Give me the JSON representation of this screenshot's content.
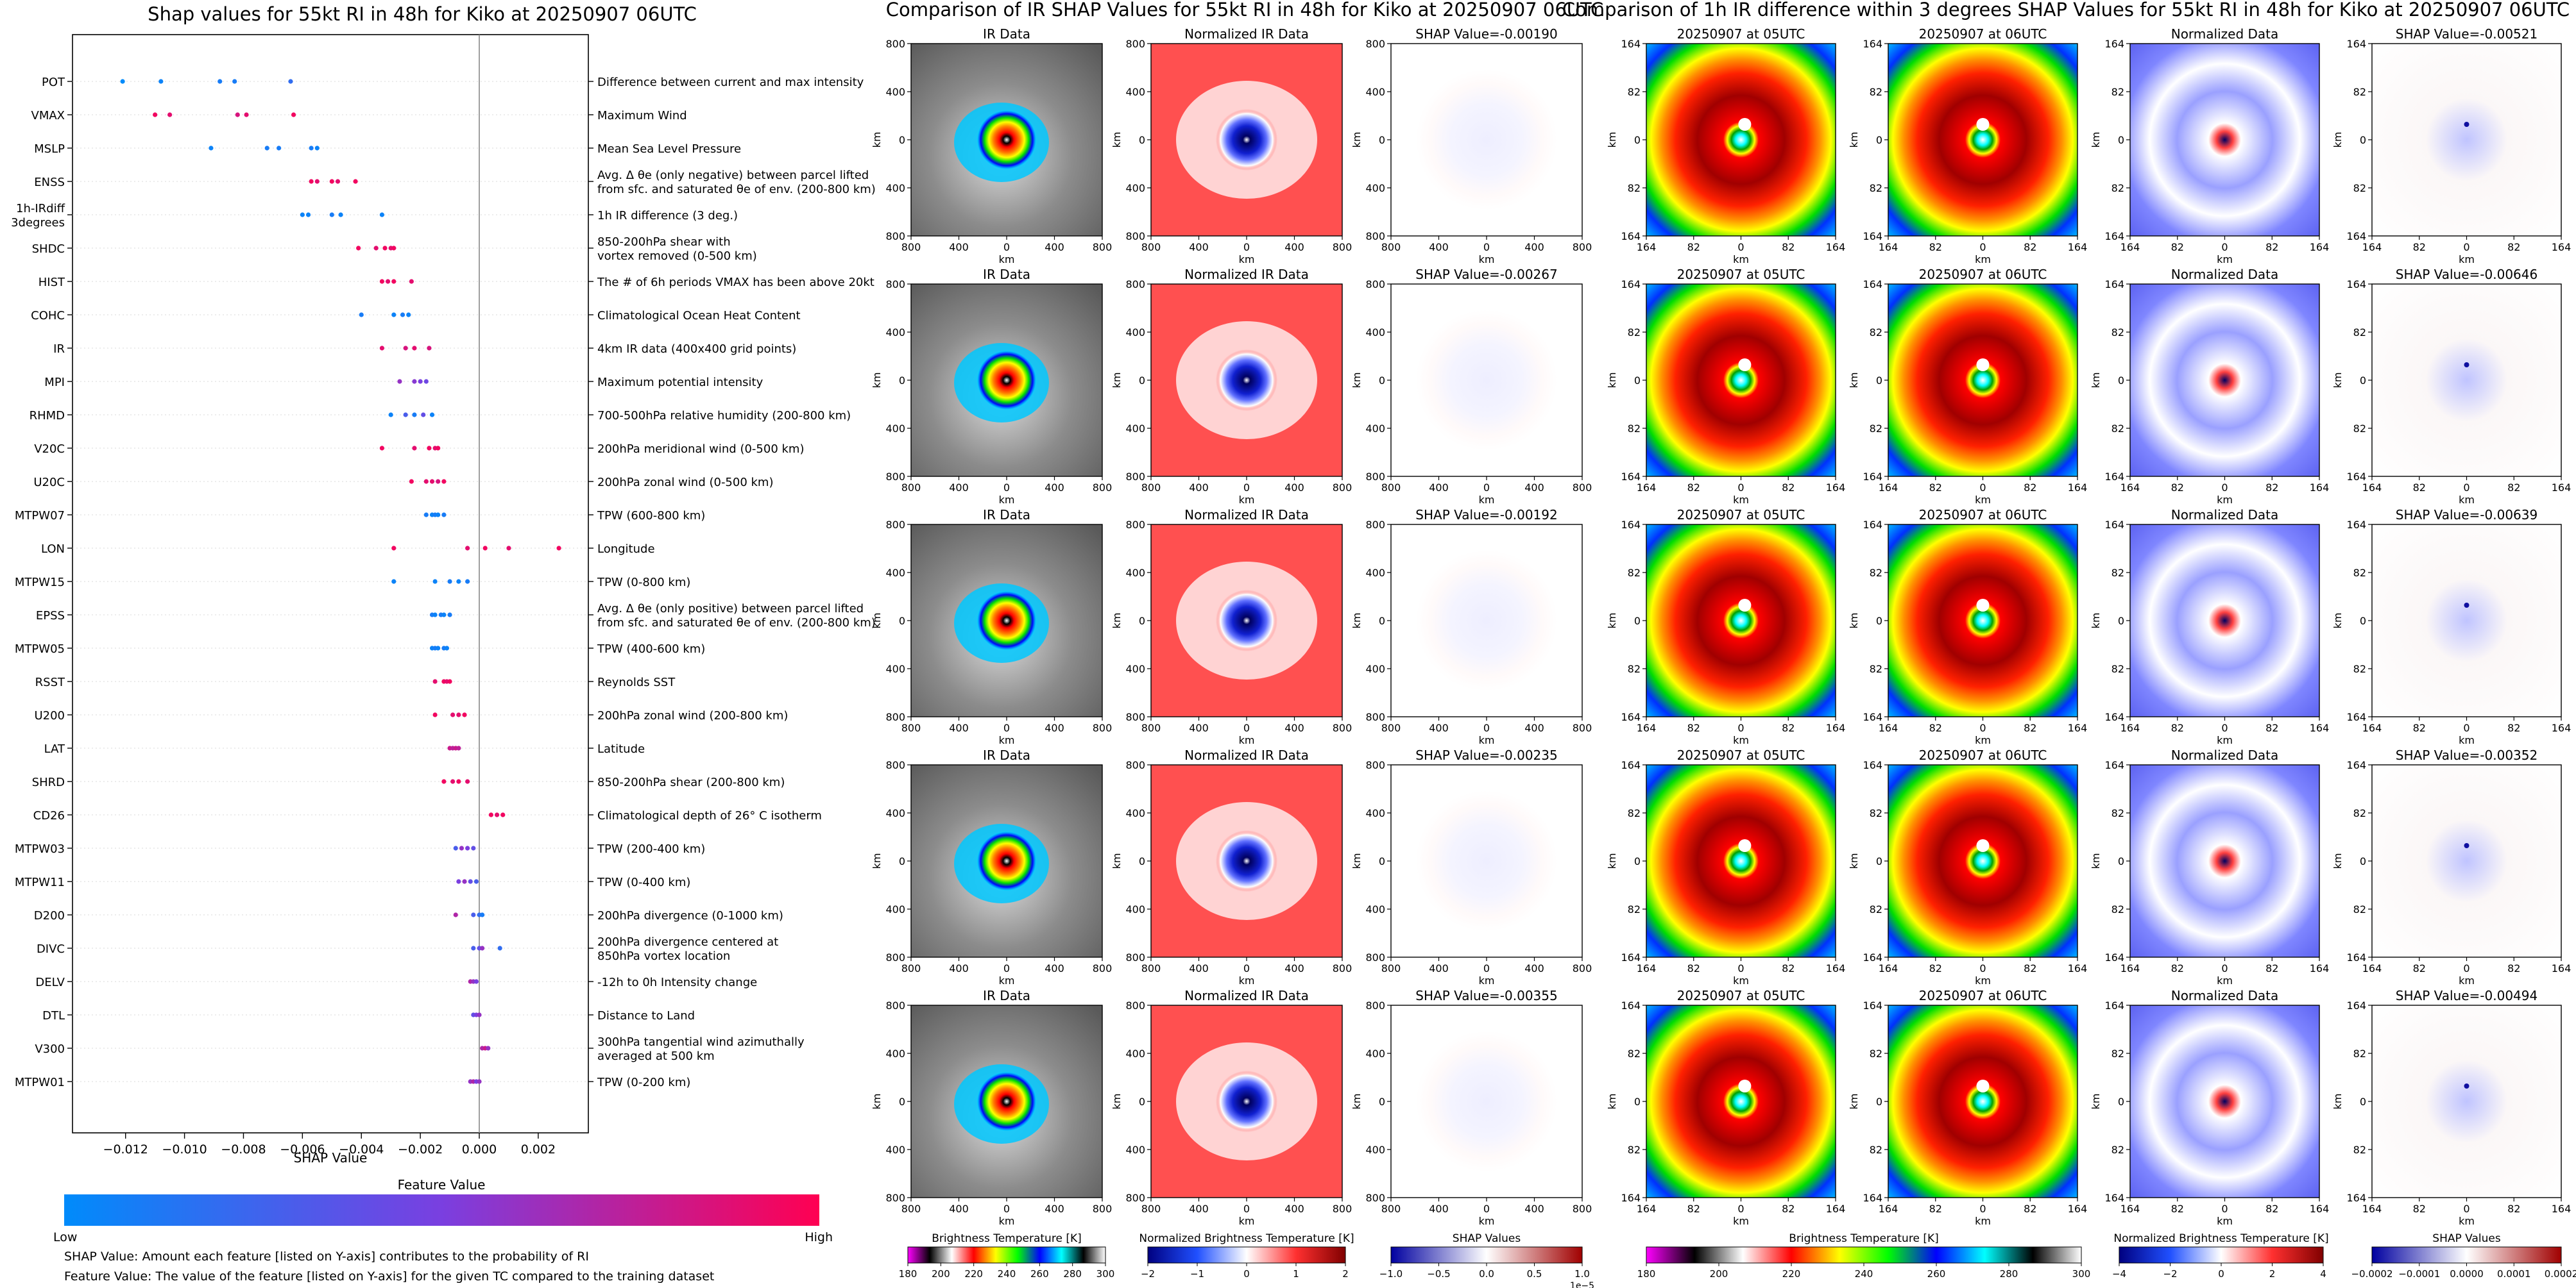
{
  "left_panel": {
    "title": "Shap values for 55kt RI in 48h for Kiko at 20250907 06UTC",
    "xlabel": "SHAP Value",
    "colorbar_title": "Feature Value",
    "colorbar_low": "Low",
    "colorbar_high": "High",
    "footnotes": [
      "SHAP Value: Amount each feature [listed on Y-axis] contributes to the probability of RI",
      "Feature Value: The value of the feature [listed on Y-axis] for the given TC compared to the training dataset"
    ]
  },
  "middle_panel": {
    "title": "Comparison of IR SHAP Values for 55kt RI in 48h for Kiko at 20250907 06UTC",
    "col_titles": [
      "IR Data",
      "Normalized IR Data"
    ],
    "shap_titles": [
      "SHAP Value=-0.00190",
      "SHAP Value=-0.00267",
      "SHAP Value=-0.00192",
      "SHAP Value=-0.00235",
      "SHAP Value=-0.00355"
    ],
    "axis_label": "km",
    "x_ticks": [
      "800",
      "400",
      "0",
      "400",
      "800"
    ],
    "y_ticks": [
      "800",
      "400",
      "0",
      "400",
      "800"
    ],
    "colorbars": [
      {
        "label": "Brightness Temperature [K]",
        "ticks": [
          "180",
          "200",
          "220",
          "240",
          "260",
          "280",
          "300"
        ],
        "gradient": [
          "#ff00ff",
          "#000000",
          "#ffffff",
          "#ff0000",
          "#ffff00",
          "#00ff00",
          "#0000ff",
          "#00ffff",
          "#000000",
          "#ffffff"
        ]
      },
      {
        "label": "Normalized Brightness Temperature [K]",
        "ticks": [
          "−2",
          "−1",
          "0",
          "1",
          "2"
        ],
        "gradient": [
          "#000080",
          "#2050ff",
          "#ffffff",
          "#ff3030",
          "#800000"
        ]
      },
      {
        "label": "SHAP Values",
        "ticks": [
          "−1.0",
          "−0.5",
          "0.0",
          "0.5",
          "1.0"
        ],
        "offset": "1e−5",
        "gradient": [
          "#0000a0",
          "#ffffff",
          "#a00000"
        ]
      }
    ]
  },
  "right_panel": {
    "title": "Comparison of 1h IR difference within 3 degrees SHAP Values for 55kt RI in 48h for Kiko at 20250907 06UTC",
    "col_titles": [
      "20250907 at 05UTC",
      "20250907 at 06UTC",
      "Normalized Data"
    ],
    "shap_titles": [
      "SHAP Value=-0.00521",
      "SHAP Value=-0.00646",
      "SHAP Value=-0.00639",
      "SHAP Value=-0.00352",
      "SHAP Value=-0.00494"
    ],
    "axis_label": "km",
    "x_ticks": [
      "164",
      "82",
      "0",
      "82",
      "164"
    ],
    "y_ticks": [
      "164",
      "82",
      "0",
      "82",
      "164"
    ],
    "colorbars": [
      {
        "label": "Brightness Temperature [K]",
        "ticks": [
          "180",
          "200",
          "220",
          "240",
          "260",
          "280",
          "300"
        ],
        "gradient": [
          "#ff00ff",
          "#000000",
          "#ffffff",
          "#ff0000",
          "#ffff00",
          "#00ff00",
          "#0000ff",
          "#00ffff",
          "#000000",
          "#ffffff"
        ]
      },
      {
        "label": "Normalized Brightness Temperature [K]",
        "ticks": [
          "−4",
          "−2",
          "0",
          "2",
          "4"
        ],
        "gradient": [
          "#000080",
          "#2050ff",
          "#ffffff",
          "#ff3030",
          "#800000"
        ]
      },
      {
        "label": "SHAP Values",
        "ticks": [
          "−0.0002",
          "−0.0001",
          "0.0000",
          "0.0001",
          "0.0002"
        ],
        "gradient": [
          "#0000a0",
          "#ffffff",
          "#a00000"
        ]
      }
    ]
  },
  "chart_data": [
    {
      "type": "scatter",
      "title": "Shap values for 55kt RI in 48h for Kiko at 20250907 06UTC",
      "xlabel": "SHAP Value",
      "xlim": [
        -0.0138,
        0.0037
      ],
      "x_ticks": [
        -0.012,
        -0.01,
        -0.008,
        -0.006,
        -0.004,
        -0.002,
        0.0,
        0.002
      ],
      "x_tick_labels": [
        "−0.012",
        "−0.010",
        "−0.008",
        "−0.006",
        "−0.004",
        "−0.002",
        "0.000",
        "0.002"
      ],
      "colorbar": {
        "label": "Feature Value",
        "low": "Low",
        "high": "High",
        "gradient": [
          "#008bfb",
          "#7a3fe0",
          "#ff0052"
        ]
      },
      "features": [
        {
          "name": "POT",
          "desc": [
            "Difference between current and max intensity"
          ],
          "points": [
            [
              -0.0121,
              0.0
            ],
            [
              -0.0108,
              0.05
            ],
            [
              -0.0088,
              0.1
            ],
            [
              -0.0083,
              0.1
            ],
            [
              -0.0064,
              0.2
            ]
          ]
        },
        {
          "name": "VMAX",
          "desc": [
            "Maximum Wind"
          ],
          "points": [
            [
              -0.011,
              0.95
            ],
            [
              -0.0105,
              0.9
            ],
            [
              -0.0082,
              0.85
            ],
            [
              -0.0079,
              0.9
            ],
            [
              -0.0063,
              0.95
            ]
          ]
        },
        {
          "name": "MSLP",
          "desc": [
            "Mean Sea Level Pressure"
          ],
          "points": [
            [
              -0.0091,
              0.05
            ],
            [
              -0.0072,
              0.1
            ],
            [
              -0.0068,
              0.1
            ],
            [
              -0.0057,
              0.1
            ],
            [
              -0.0055,
              0.05
            ]
          ]
        },
        {
          "name": "ENSS",
          "desc": [
            "Avg. Δ θe (only negative) between parcel lifted",
            "from sfc. and saturated θe of env. (200-800 km)"
          ],
          "points": [
            [
              -0.0057,
              0.95
            ],
            [
              -0.0055,
              0.9
            ],
            [
              -0.005,
              0.95
            ],
            [
              -0.0048,
              0.9
            ],
            [
              -0.0042,
              0.95
            ]
          ]
        },
        {
          "name": "1h-IRdiff\n3degrees",
          "desc": [
            "1h IR difference (3 deg.)"
          ],
          "points": [
            [
              -0.006,
              0.05
            ],
            [
              -0.0058,
              0.05
            ],
            [
              -0.005,
              0.1
            ],
            [
              -0.0047,
              0.05
            ],
            [
              -0.0033,
              0.05
            ]
          ]
        },
        {
          "name": "SHDC",
          "desc": [
            "850-200hPa shear with",
            "vortex removed (0-500 km)"
          ],
          "points": [
            [
              -0.0041,
              0.95
            ],
            [
              -0.0035,
              0.9
            ],
            [
              -0.0032,
              0.95
            ],
            [
              -0.003,
              0.9
            ],
            [
              -0.0029,
              0.95
            ]
          ]
        },
        {
          "name": "HIST",
          "desc": [
            "The # of 6h periods VMAX has been above 20kt"
          ],
          "points": [
            [
              -0.0033,
              0.95
            ],
            [
              -0.0031,
              0.9
            ],
            [
              -0.0029,
              0.95
            ],
            [
              -0.0023,
              0.9
            ]
          ]
        },
        {
          "name": "COHC",
          "desc": [
            "Climatological Ocean Heat Content"
          ],
          "points": [
            [
              -0.004,
              0.1
            ],
            [
              -0.0029,
              0.05
            ],
            [
              -0.0026,
              0.1
            ],
            [
              -0.0024,
              0.05
            ]
          ]
        },
        {
          "name": "IR",
          "desc": [
            "4km IR data (400x400 grid points)"
          ],
          "points": [
            [
              -0.0033,
              0.9
            ],
            [
              -0.0025,
              0.85
            ],
            [
              -0.0022,
              0.9
            ],
            [
              -0.0017,
              0.85
            ]
          ]
        },
        {
          "name": "MPI",
          "desc": [
            "Maximum potential intensity"
          ],
          "points": [
            [
              -0.0027,
              0.6
            ],
            [
              -0.0022,
              0.55
            ],
            [
              -0.002,
              0.5
            ],
            [
              -0.0018,
              0.45
            ]
          ]
        },
        {
          "name": "RHMD",
          "desc": [
            "700-500hPa relative humidity (200-800 km)"
          ],
          "points": [
            [
              -0.003,
              0.05
            ],
            [
              -0.0025,
              0.3
            ],
            [
              -0.0022,
              0.1
            ],
            [
              -0.0019,
              0.4
            ],
            [
              -0.0016,
              0.05
            ]
          ]
        },
        {
          "name": "V20C",
          "desc": [
            "200hPa meridional wind (0-500 km)"
          ],
          "points": [
            [
              -0.0033,
              0.95
            ],
            [
              -0.0022,
              0.9
            ],
            [
              -0.0017,
              0.95
            ],
            [
              -0.0015,
              0.9
            ],
            [
              -0.0014,
              0.95
            ]
          ]
        },
        {
          "name": "U20C",
          "desc": [
            "200hPa zonal wind (0-500 km)"
          ],
          "points": [
            [
              -0.0023,
              0.95
            ],
            [
              -0.0018,
              0.9
            ],
            [
              -0.0016,
              0.9
            ],
            [
              -0.0014,
              0.85
            ],
            [
              -0.0012,
              0.95
            ]
          ]
        },
        {
          "name": "MTPW07",
          "desc": [
            "TPW (600-800 km)"
          ],
          "points": [
            [
              -0.0018,
              0.1
            ],
            [
              -0.0016,
              0.05
            ],
            [
              -0.0015,
              0.1
            ],
            [
              -0.0014,
              0.05
            ],
            [
              -0.0012,
              0.1
            ]
          ]
        },
        {
          "name": "LON",
          "desc": [
            "Longitude"
          ],
          "points": [
            [
              -0.0029,
              0.95
            ],
            [
              -0.0004,
              0.9
            ],
            [
              0.0002,
              0.95
            ],
            [
              0.001,
              0.9
            ],
            [
              0.0027,
              0.95
            ]
          ]
        },
        {
          "name": "MTPW15",
          "desc": [
            "TPW (0-800 km)"
          ],
          "points": [
            [
              -0.0029,
              0.05
            ],
            [
              -0.0015,
              0.05
            ],
            [
              -0.001,
              0.1
            ],
            [
              -0.0007,
              0.05
            ],
            [
              -0.0004,
              0.1
            ]
          ]
        },
        {
          "name": "EPSS",
          "desc": [
            "Avg. Δ θe (only positive) between parcel lifted",
            "from sfc. and saturated θe of env. (200-800 km)"
          ],
          "points": [
            [
              -0.0016,
              0.1
            ],
            [
              -0.0015,
              0.05
            ],
            [
              -0.0013,
              0.1
            ],
            [
              -0.0012,
              0.05
            ],
            [
              -0.001,
              0.1
            ]
          ]
        },
        {
          "name": "MTPW05",
          "desc": [
            "TPW (400-600 km)"
          ],
          "points": [
            [
              -0.0016,
              0.05
            ],
            [
              -0.0015,
              0.1
            ],
            [
              -0.0014,
              0.05
            ],
            [
              -0.0012,
              0.1
            ],
            [
              -0.0011,
              0.05
            ]
          ]
        },
        {
          "name": "RSST",
          "desc": [
            "Reynolds SST"
          ],
          "points": [
            [
              -0.0015,
              0.9
            ],
            [
              -0.0012,
              0.95
            ],
            [
              -0.0011,
              0.9
            ],
            [
              -0.001,
              0.95
            ]
          ]
        },
        {
          "name": "U200",
          "desc": [
            "200hPa zonal wind (200-800 km)"
          ],
          "points": [
            [
              -0.0015,
              0.95
            ],
            [
              -0.0009,
              0.9
            ],
            [
              -0.0007,
              0.9
            ],
            [
              -0.0005,
              0.95
            ]
          ]
        },
        {
          "name": "LAT",
          "desc": [
            "Latitude"
          ],
          "points": [
            [
              -0.001,
              0.8
            ],
            [
              -0.0009,
              0.75
            ],
            [
              -0.0008,
              0.8
            ],
            [
              -0.0007,
              0.75
            ]
          ]
        },
        {
          "name": "SHRD",
          "desc": [
            "850-200hPa shear (200-800 km)"
          ],
          "points": [
            [
              -0.0012,
              0.95
            ],
            [
              -0.0009,
              0.9
            ],
            [
              -0.0007,
              0.95
            ],
            [
              -0.0004,
              0.9
            ]
          ]
        },
        {
          "name": "CD26",
          "desc": [
            "Climatological depth of 26° C isotherm"
          ],
          "points": [
            [
              0.0004,
              0.95
            ],
            [
              0.0006,
              0.9
            ],
            [
              0.0008,
              0.95
            ]
          ]
        },
        {
          "name": "MTPW03",
          "desc": [
            "TPW (200-400 km)"
          ],
          "points": [
            [
              -0.0008,
              0.3
            ],
            [
              -0.0006,
              0.6
            ],
            [
              -0.0004,
              0.5
            ],
            [
              -0.0002,
              0.4
            ]
          ]
        },
        {
          "name": "MTPW11",
          "desc": [
            "TPW (0-400 km)"
          ],
          "points": [
            [
              -0.0007,
              0.5
            ],
            [
              -0.0005,
              0.6
            ],
            [
              -0.0003,
              0.4
            ],
            [
              -0.0001,
              0.3
            ]
          ]
        },
        {
          "name": "D200",
          "desc": [
            "200hPa divergence (0-1000 km)"
          ],
          "points": [
            [
              -0.0008,
              0.7
            ],
            [
              -0.0002,
              0.3
            ],
            [
              0.0,
              0.2
            ],
            [
              0.0001,
              0.1
            ]
          ]
        },
        {
          "name": "DIVC",
          "desc": [
            "200hPa divergence centered at",
            "850hPa vortex location"
          ],
          "points": [
            [
              -0.0002,
              0.3
            ],
            [
              0.0,
              0.4
            ],
            [
              0.0001,
              0.6
            ],
            [
              0.0007,
              0.2
            ]
          ]
        },
        {
          "name": "DELV",
          "desc": [
            "-12h to 0h Intensity change"
          ],
          "points": [
            [
              -0.0003,
              0.7
            ],
            [
              -0.0002,
              0.6
            ],
            [
              -0.0001,
              0.5
            ]
          ]
        },
        {
          "name": "DTL",
          "desc": [
            "Distance to Land"
          ],
          "points": [
            [
              -0.0002,
              0.4
            ],
            [
              -0.0001,
              0.5
            ],
            [
              0.0,
              0.6
            ]
          ]
        },
        {
          "name": "V300",
          "desc": [
            "300hPa tangential wind azimuthally",
            "averaged at 500 km"
          ],
          "points": [
            [
              0.0001,
              0.7
            ],
            [
              0.0002,
              0.8
            ],
            [
              0.0003,
              0.6
            ]
          ]
        },
        {
          "name": "MTPW01",
          "desc": [
            "TPW (0-200 km)"
          ],
          "points": [
            [
              -0.0003,
              0.6
            ],
            [
              -0.0002,
              0.7
            ],
            [
              -0.0001,
              0.5
            ],
            [
              0.0,
              0.6
            ]
          ]
        }
      ]
    },
    {
      "type": "heatmap",
      "title": "Comparison of IR SHAP Values for 55kt RI in 48h for Kiko at 20250907 06UTC",
      "rows": 5,
      "columns": [
        "IR Data",
        "Normalized IR Data",
        "SHAP"
      ],
      "shap_values": [
        -0.0019,
        -0.00267,
        -0.00192,
        -0.00235,
        -0.00355
      ]
    },
    {
      "type": "heatmap",
      "title": "Comparison of 1h IR difference within 3 degrees SHAP Values for 55kt RI in 48h for Kiko at 20250907 06UTC",
      "rows": 5,
      "columns": [
        "20250907 at 05UTC",
        "20250907 at 06UTC",
        "Normalized Data",
        "SHAP"
      ],
      "shap_values": [
        -0.00521,
        -0.00646,
        -0.00639,
        -0.00352,
        -0.00494
      ]
    }
  ]
}
